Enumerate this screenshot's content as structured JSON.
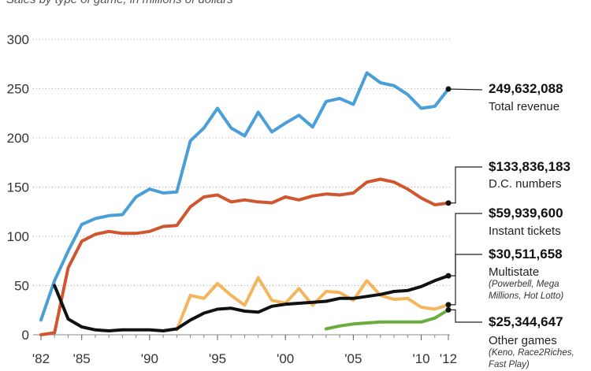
{
  "chart_data": {
    "type": "line",
    "subtitle": "Sales by type of game, in millions of dollars",
    "x_tick_labels": [
      "'82",
      "'85",
      "'90",
      "'95",
      "'00",
      "'05",
      "'10",
      "'12"
    ],
    "x_ticks": [
      1982,
      1985,
      1990,
      1995,
      2000,
      2005,
      2010,
      2012
    ],
    "y_ticks": [
      0,
      50,
      100,
      150,
      200,
      250,
      300
    ],
    "xlim": [
      1982,
      2012
    ],
    "ylim": [
      0,
      300
    ],
    "grid": "horizontal dotted",
    "series": [
      {
        "key": "total",
        "color": "#4a9fd8",
        "x": [
          1982,
          1983,
          1984,
          1985,
          1986,
          1987,
          1988,
          1989,
          1990,
          1991,
          1992,
          1993,
          1994,
          1995,
          1996,
          1997,
          1998,
          1999,
          2000,
          2001,
          2002,
          2003,
          2004,
          2005,
          2006,
          2007,
          2008,
          2009,
          2010,
          2011,
          2012
        ],
        "values": [
          15,
          55,
          85,
          112,
          118,
          121,
          122,
          140,
          148,
          144,
          145,
          197,
          210,
          230,
          210,
          202,
          226,
          206,
          215,
          223,
          211,
          237,
          240,
          234,
          266,
          256,
          253,
          244,
          230,
          232,
          249.6
        ]
      },
      {
        "key": "dc_numbers",
        "color": "#d0562f",
        "x": [
          1982,
          1983,
          1984,
          1985,
          1986,
          1987,
          1988,
          1989,
          1990,
          1991,
          1992,
          1993,
          1994,
          1995,
          1996,
          1997,
          1998,
          1999,
          2000,
          2001,
          2002,
          2003,
          2004,
          2005,
          2006,
          2007,
          2008,
          2009,
          2010,
          2011,
          2012
        ],
        "values": [
          0,
          2,
          68,
          95,
          102,
          105,
          103,
          103,
          105,
          110,
          111,
          130,
          140,
          142,
          135,
          137,
          135,
          134,
          140,
          137,
          141,
          143,
          142,
          144,
          155,
          158,
          155,
          148,
          139,
          132,
          133.8
        ]
      },
      {
        "key": "instant_tickets",
        "color": "#111111",
        "x": [
          1982,
          1983,
          1984,
          1985,
          1986,
          1987,
          1988,
          1989,
          1990,
          1991,
          1992,
          1993,
          1994,
          1995,
          1996,
          1997,
          1998,
          1999,
          2000,
          2001,
          2002,
          2003,
          2004,
          2005,
          2006,
          2007,
          2008,
          2009,
          2010,
          2011,
          2012
        ],
        "values": [
          null,
          50,
          16,
          8,
          5,
          4,
          5,
          5,
          5,
          4,
          6,
          15,
          22,
          26,
          27,
          24,
          23,
          29,
          31,
          32,
          33,
          34,
          37,
          37,
          39,
          41,
          44,
          45,
          49,
          55,
          59.9
        ]
      },
      {
        "key": "multistate",
        "color": "#f5b55c",
        "x": [
          1992,
          1993,
          1994,
          1995,
          1996,
          1997,
          1998,
          1999,
          2000,
          2001,
          2002,
          2003,
          2004,
          2005,
          2006,
          2007,
          2008,
          2009,
          2010,
          2011,
          2012
        ],
        "values": [
          5,
          40,
          37,
          52,
          40,
          30,
          58,
          35,
          32,
          47,
          30,
          44,
          43,
          35,
          55,
          40,
          36,
          37,
          28,
          26,
          30.5
        ]
      },
      {
        "key": "other_games",
        "color": "#6aad3c",
        "x": [
          2003,
          2004,
          2005,
          2006,
          2007,
          2008,
          2009,
          2010,
          2011,
          2012
        ],
        "values": [
          6,
          9,
          11,
          12,
          13,
          13,
          13,
          13,
          17,
          25.3
        ]
      }
    ]
  },
  "annotations": {
    "total": {
      "value": "249,632,088",
      "label": "Total revenue"
    },
    "dc_numbers": {
      "value": "$133,836,183",
      "label": "D.C. numbers"
    },
    "instant_tickets": {
      "value": "$59,939,600",
      "label": "Instant tickets"
    },
    "multistate": {
      "value": "$30,511,658",
      "label": "Multistate",
      "note1": "(Powerbell, Mega",
      "note2": "Millions, Hot Lotto)"
    },
    "other_games": {
      "value": "$25,344,647",
      "label": "Other games",
      "note1": "(Keno, Race2Riches,",
      "note2": "Fast Play)"
    }
  }
}
